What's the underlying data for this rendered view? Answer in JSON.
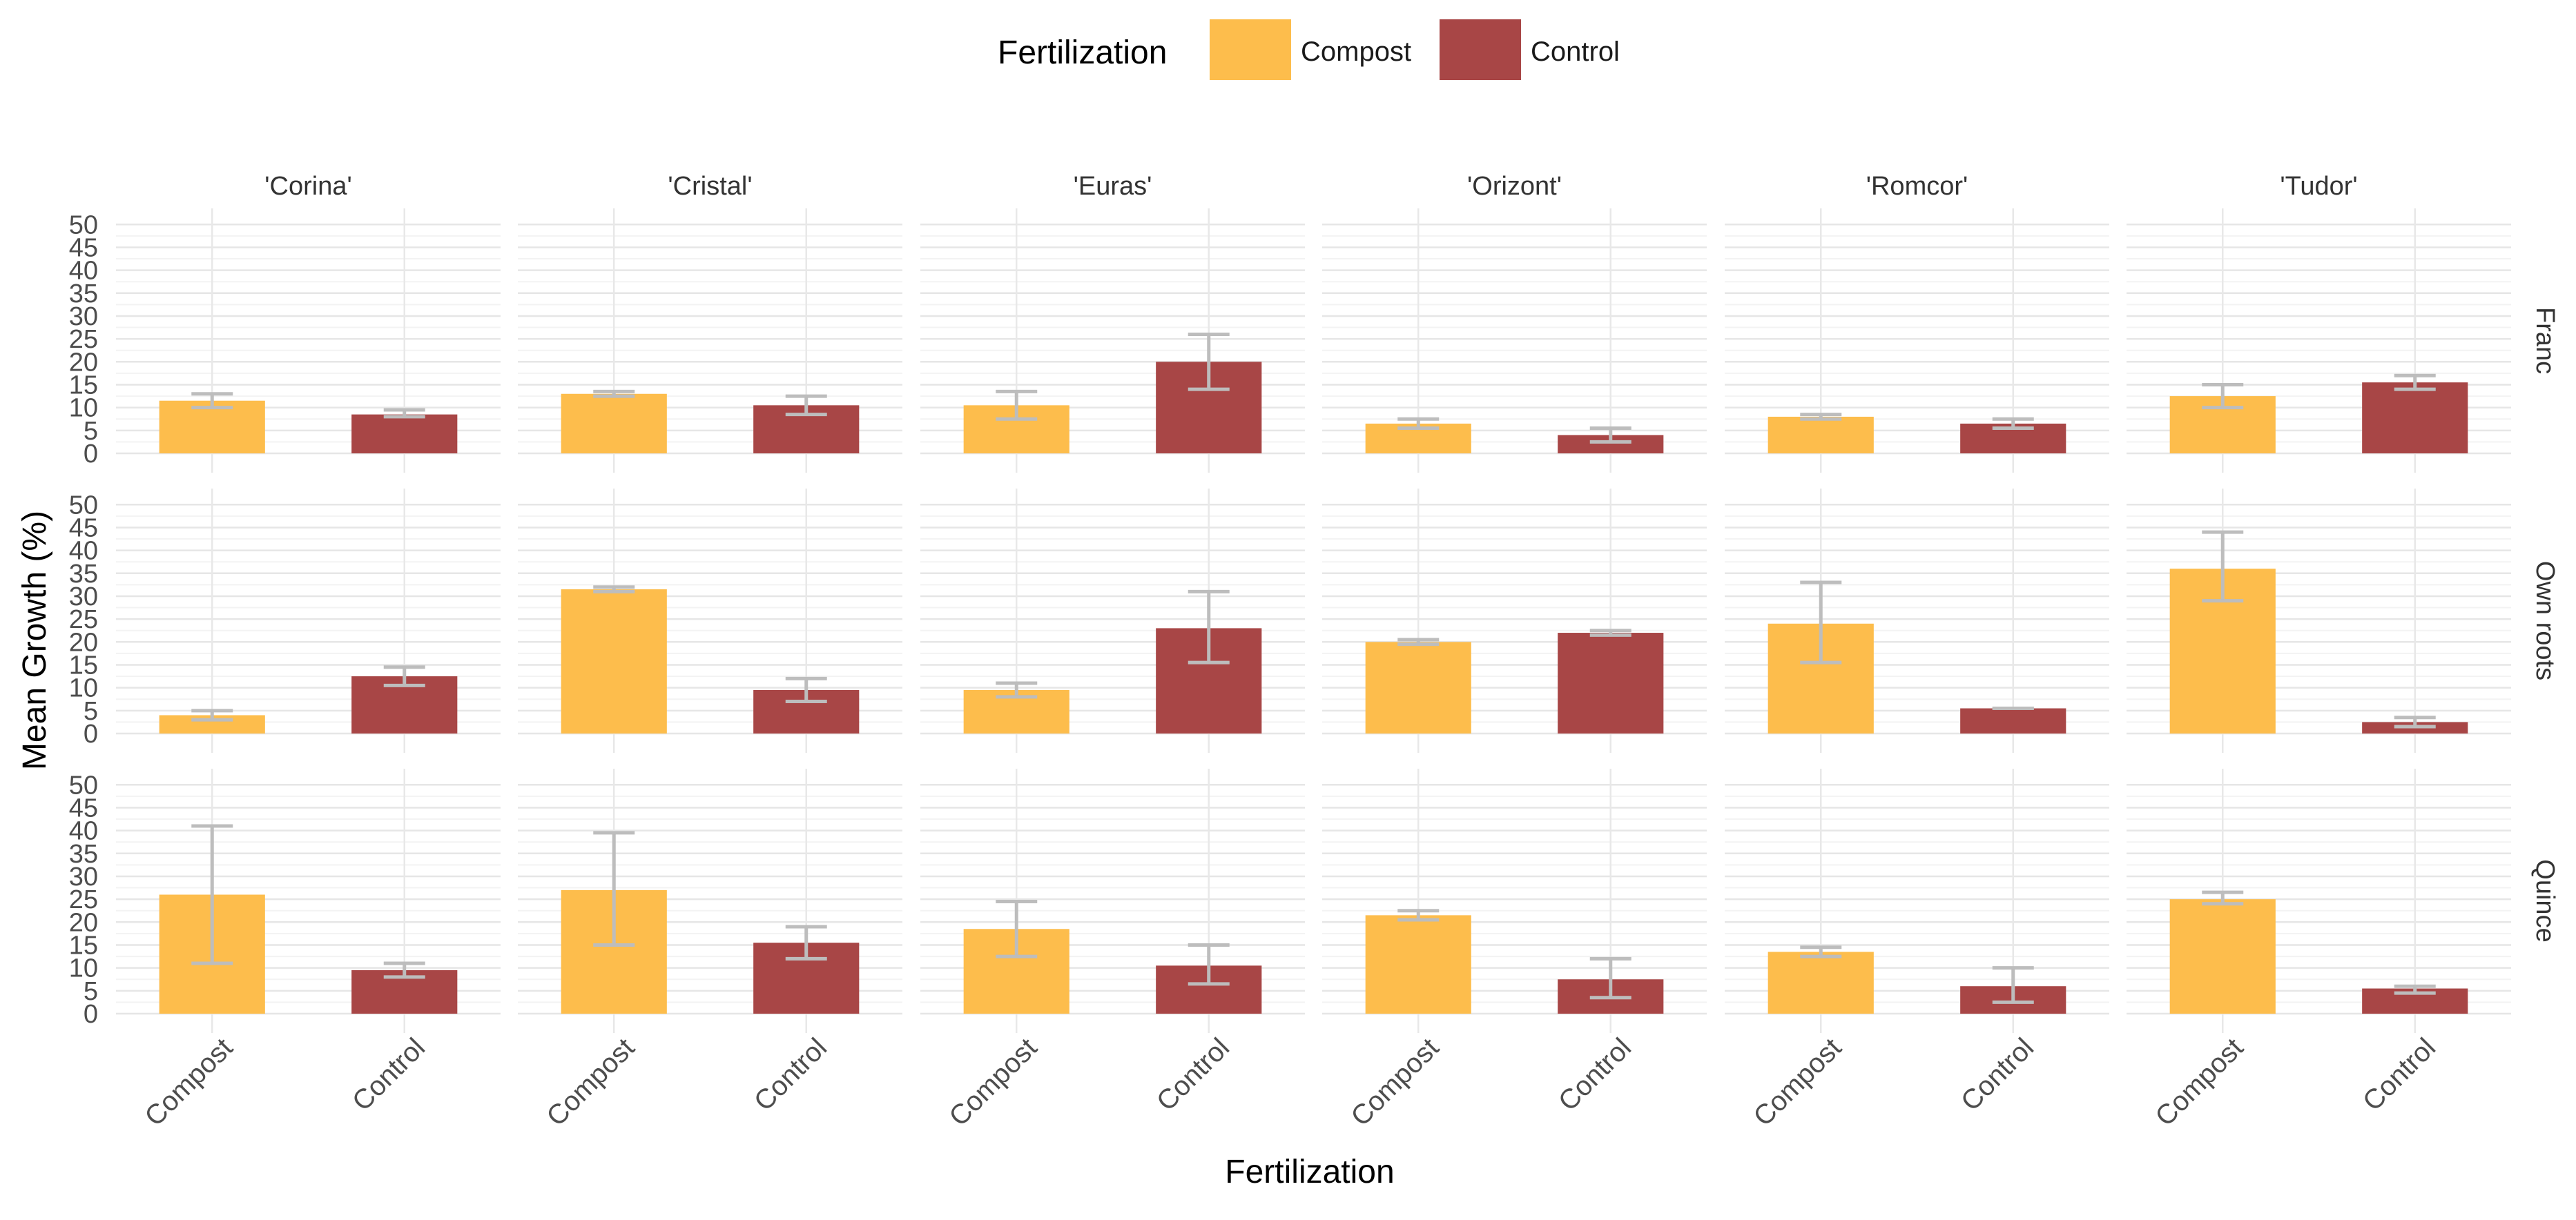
{
  "chart_data": {
    "type": "bar",
    "xlabel": "Fertilization",
    "ylabel": "Mean Growth (%)",
    "legend": {
      "title": "Fertilization",
      "position": "top",
      "items": [
        {
          "label": "Compost",
          "color": "#FDBD4C"
        },
        {
          "label": "Control",
          "color": "#A84646"
        }
      ]
    },
    "categories": [
      "Compost",
      "Control"
    ],
    "columns": [
      "'Corina'",
      "'Cristal'",
      "'Euras'",
      "'Orizont'",
      "'Romcor'",
      "'Tudor'"
    ],
    "rows": [
      "Franc",
      "Own roots",
      "Quince"
    ],
    "ylim": [
      0,
      52
    ],
    "yticks": [
      0,
      5,
      10,
      15,
      20,
      25,
      30,
      35,
      40,
      45,
      50
    ],
    "grid": true,
    "error_bar_color": "#BDBDBD",
    "panels": [
      {
        "row": "Franc",
        "column": "'Corina'",
        "values": [
          11.5,
          8.5
        ],
        "error_low": [
          10,
          8
        ],
        "error_high": [
          13,
          9.5
        ]
      },
      {
        "row": "Franc",
        "column": "'Cristal'",
        "values": [
          13,
          10.5
        ],
        "error_low": [
          12.5,
          8.5
        ],
        "error_high": [
          13.5,
          12.5
        ]
      },
      {
        "row": "Franc",
        "column": "'Euras'",
        "values": [
          10.5,
          20
        ],
        "error_low": [
          7.5,
          14
        ],
        "error_high": [
          13.5,
          26
        ]
      },
      {
        "row": "Franc",
        "column": "'Orizont'",
        "values": [
          6.5,
          4
        ],
        "error_low": [
          5.5,
          2.5
        ],
        "error_high": [
          7.5,
          5.5
        ]
      },
      {
        "row": "Franc",
        "column": "'Romcor'",
        "values": [
          8,
          6.5
        ],
        "error_low": [
          7.5,
          5.5
        ],
        "error_high": [
          8.5,
          7.5
        ]
      },
      {
        "row": "Franc",
        "column": "'Tudor'",
        "values": [
          12.5,
          15.5
        ],
        "error_low": [
          10,
          14
        ],
        "error_high": [
          15,
          17
        ]
      },
      {
        "row": "Own roots",
        "column": "'Corina'",
        "values": [
          4,
          12.5
        ],
        "error_low": [
          3,
          10.5
        ],
        "error_high": [
          5,
          14.5
        ]
      },
      {
        "row": "Own roots",
        "column": "'Cristal'",
        "values": [
          31.5,
          9.5
        ],
        "error_low": [
          31,
          7
        ],
        "error_high": [
          32,
          12
        ]
      },
      {
        "row": "Own roots",
        "column": "'Euras'",
        "values": [
          9.5,
          23
        ],
        "error_low": [
          8,
          15.5
        ],
        "error_high": [
          11,
          31
        ]
      },
      {
        "row": "Own roots",
        "column": "'Orizont'",
        "values": [
          20,
          22
        ],
        "error_low": [
          19.5,
          21.5
        ],
        "error_high": [
          20.5,
          22.5
        ]
      },
      {
        "row": "Own roots",
        "column": "'Romcor'",
        "values": [
          24,
          5.5
        ],
        "error_low": [
          15.5,
          5.5
        ],
        "error_high": [
          33,
          5.5
        ]
      },
      {
        "row": "Own roots",
        "column": "'Tudor'",
        "values": [
          36,
          2.5
        ],
        "error_low": [
          29,
          1.5
        ],
        "error_high": [
          44,
          3.5
        ]
      },
      {
        "row": "Quince",
        "column": "'Corina'",
        "values": [
          26,
          9.5
        ],
        "error_low": [
          11,
          8
        ],
        "error_high": [
          41,
          11
        ]
      },
      {
        "row": "Quince",
        "column": "'Cristal'",
        "values": [
          27,
          15.5
        ],
        "error_low": [
          15,
          12
        ],
        "error_high": [
          39.5,
          19
        ]
      },
      {
        "row": "Quince",
        "column": "'Euras'",
        "values": [
          18.5,
          10.5
        ],
        "error_low": [
          12.5,
          6.5
        ],
        "error_high": [
          24.5,
          15
        ]
      },
      {
        "row": "Quince",
        "column": "'Orizont'",
        "values": [
          21.5,
          7.5
        ],
        "error_low": [
          20.5,
          3.5
        ],
        "error_high": [
          22.5,
          12
        ]
      },
      {
        "row": "Quince",
        "column": "'Romcor'",
        "values": [
          13.5,
          6
        ],
        "error_low": [
          12.5,
          2.5
        ],
        "error_high": [
          14.5,
          10
        ]
      },
      {
        "row": "Quince",
        "column": "'Tudor'",
        "values": [
          25,
          5.5
        ],
        "error_low": [
          24,
          4.5
        ],
        "error_high": [
          26.5,
          6
        ]
      }
    ]
  }
}
